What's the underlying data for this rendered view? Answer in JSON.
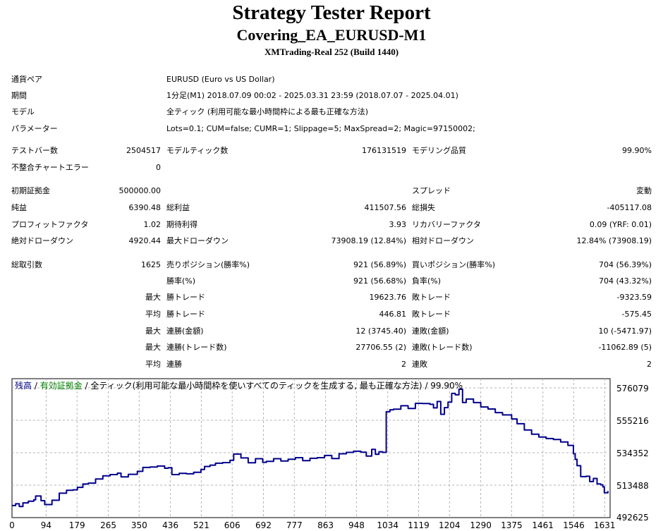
{
  "report": {
    "title": "Strategy Tester Report",
    "subtitle": "Covering_EA_EURUSD-M1",
    "server": "XMTrading-Real 252 (Build 1440)"
  },
  "settings": [
    {
      "label": "通貨ペア",
      "value": "EURUSD (Euro vs US Dollar)"
    },
    {
      "label": "期間",
      "value": "1分足(M1) 2018.07.09 00:02 - 2025.03.31 23:59 (2018.07.07 - 2025.04.01)"
    },
    {
      "label": "モデル",
      "value": "全ティック (利用可能な最小時間枠による最も正確な方法)"
    },
    {
      "label": "パラメーター",
      "value": "Lots=0.1; CUM=false; CUMR=1; Slippage=5; MaxSpread=2; Magic=97150002;"
    }
  ],
  "bars": {
    "test_bars_label": "テストバー数",
    "test_bars": "2504517",
    "model_ticks_label": "モデルティック数",
    "model_ticks": "176131519",
    "quality_label": "モデリング品質",
    "quality": "99.90%",
    "mismatch_label": "不整合チャートエラー",
    "mismatch": "0"
  },
  "money": {
    "deposit_label": "初期証拠金",
    "deposit": "500000.00",
    "spread_label": "スプレッド",
    "spread": "変動",
    "net_label": "純益",
    "net": "6390.48",
    "gross_profit_label": "総利益",
    "gross_profit": "411507.56",
    "gross_loss_label": "総損失",
    "gross_loss": "-405117.08",
    "pf_label": "プロフィットファクタ",
    "pf": "1.02",
    "expected_label": "期待利得",
    "expected": "3.93",
    "recovery_label": "リカバリーファクタ",
    "recovery": "0.09 (YRF: 0.01)",
    "abs_dd_label": "絶対ドローダウン",
    "abs_dd": "4920.44",
    "max_dd_label": "最大ドローダウン",
    "max_dd": "73908.19 (12.84%)",
    "rel_dd_label": "相対ドローダウン",
    "rel_dd": "12.84% (73908.19)"
  },
  "trades": {
    "total_label": "総取引数",
    "total": "1625",
    "short_label": "売りポジション(勝率%)",
    "short": "921 (56.89%)",
    "long_label": "買いポジション(勝率%)",
    "long": "704 (56.39%)",
    "win_label": "勝率(%)",
    "win": "921 (56.68%)",
    "loss_label": "負率(%)",
    "loss": "704 (43.32%)",
    "max_word": "最大",
    "avg_word": "平均",
    "largest_win_label": "勝トレード",
    "largest_win": "19623.76",
    "largest_loss_label": "敗トレード",
    "largest_loss": "-9323.59",
    "avg_win_label": "勝トレード",
    "avg_win": "446.81",
    "avg_loss_label": "敗トレード",
    "avg_loss": "-575.45",
    "consec_win_money_label": "連勝(金額)",
    "consec_win_money": "12 (3745.40)",
    "consec_loss_money_label": "連敗(金額)",
    "consec_loss_money": "10 (-5471.97)",
    "consec_win_count_label": "連勝(トレード数)",
    "consec_win_count": "27706.55 (2)",
    "consec_loss_count_label": "連敗(トレード数)",
    "consec_loss_count": "-11062.89 (5)",
    "avg_consec_win_label": "連勝",
    "avg_consec_win": "2",
    "avg_consec_loss_label": "連敗",
    "avg_consec_loss": "2"
  },
  "chart_data": {
    "type": "line",
    "legend": {
      "balance": "残高",
      "sep1": " / ",
      "equity": "有効証拠金",
      "sep2": " / ",
      "model": "全ティック(利用可能な最小時間枠を使いすべてのティックを生成する, 最も正確な方法)",
      "sep3": " / ",
      "quality": "99.90%"
    },
    "xticks": [
      "0",
      "94",
      "179",
      "265",
      "350",
      "436",
      "521",
      "606",
      "692",
      "777",
      "863",
      "948",
      "1034",
      "1119",
      "1204",
      "1290",
      "1375",
      "1461",
      "1546",
      "1631"
    ],
    "yticks": [
      "576079",
      "555216",
      "534352",
      "513488",
      "492625"
    ],
    "xlim": [
      0,
      1646
    ],
    "ylim": [
      492625,
      582000
    ],
    "grid": true,
    "colors": {
      "balance": "#00008b",
      "equity": "#008000",
      "grid": "#b4b4b4"
    },
    "series": [
      {
        "name": "残高",
        "x": [
          0,
          10,
          20,
          30,
          45,
          60,
          65,
          80,
          90,
          110,
          130,
          150,
          168,
          180,
          195,
          210,
          230,
          250,
          270,
          290,
          300,
          320,
          345,
          360,
          380,
          400,
          420,
          430,
          440,
          460,
          480,
          500,
          520,
          530,
          545,
          560,
          580,
          600,
          610,
          630,
          650,
          670,
          690,
          700,
          720,
          740,
          760,
          780,
          800,
          820,
          840,
          860,
          880,
          900,
          920,
          940,
          960,
          975,
          990,
          1000,
          1010,
          1020,
          1030,
          1040,
          1050,
          1070,
          1090,
          1110,
          1130,
          1150,
          1160,
          1170,
          1180,
          1190,
          1200,
          1210,
          1220,
          1230,
          1240,
          1250,
          1270,
          1290,
          1310,
          1330,
          1350,
          1375,
          1390,
          1410,
          1430,
          1450,
          1470,
          1490,
          1510,
          1530,
          1545,
          1550,
          1555,
          1565,
          1580,
          1590,
          1600,
          1610,
          1620,
          1626,
          1630,
          1640
        ],
        "y": [
          500400,
          501500,
          499800,
          502100,
          503200,
          504100,
          506500,
          503500,
          501000,
          503800,
          508300,
          510200,
          510500,
          512100,
          514200,
          514800,
          517500,
          519500,
          520300,
          521200,
          518800,
          520500,
          522400,
          524900,
          525200,
          525800,
          524400,
          524700,
          520300,
          521100,
          520800,
          521800,
          523600,
          525500,
          526400,
          527600,
          528000,
          529500,
          533500,
          531000,
          527900,
          530500,
          528200,
          528800,
          530500,
          529000,
          530200,
          531200,
          529300,
          530800,
          531200,
          532600,
          530600,
          533700,
          534600,
          535300,
          534700,
          532200,
          536500,
          533300,
          535000,
          534600,
          560700,
          562000,
          562400,
          564600,
          562800,
          566100,
          566000,
          565500,
          563200,
          567300,
          559100,
          563400,
          566900,
          572500,
          571600,
          575200,
          566700,
          568900,
          566600,
          563800,
          562500,
          560200,
          558700,
          556100,
          553000,
          549000,
          546300,
          544500,
          543500,
          542900,
          541300,
          539100,
          533700,
          530100,
          526000,
          519000,
          519200,
          515800,
          517800,
          514300,
          513700,
          512400,
          508600,
          509700
        ]
      }
    ]
  }
}
